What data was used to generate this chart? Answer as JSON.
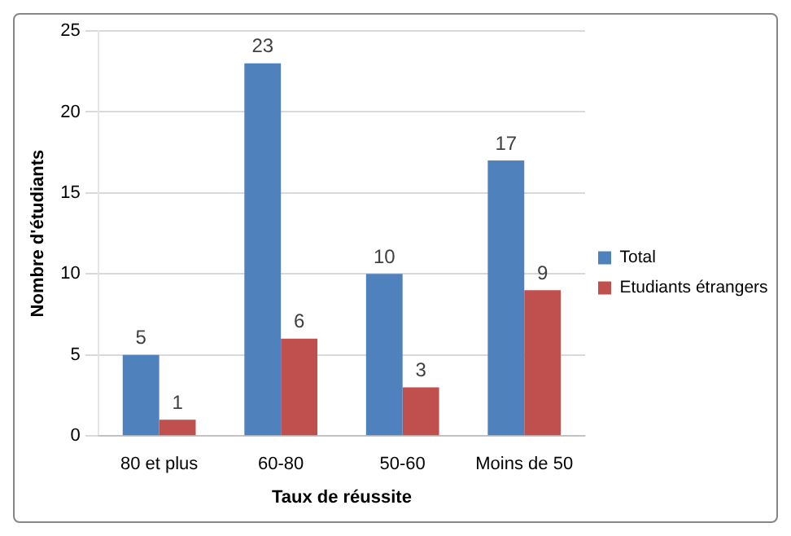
{
  "chart_data": {
    "type": "bar",
    "xlabel": "Taux de réussite",
    "ylabel": "Nombre d'étudiants",
    "categories": [
      "80 et plus",
      "60-80",
      "50-60",
      "Moins de 50"
    ],
    "series": [
      {
        "name": "Total",
        "color": "#4f81bd",
        "values": [
          5,
          23,
          10,
          17
        ]
      },
      {
        "name": "Etudiants étrangers",
        "color": "#c0504d",
        "values": [
          1,
          6,
          3,
          9
        ]
      }
    ],
    "ylim": [
      0,
      25
    ],
    "yticks": [
      0,
      5,
      10,
      15,
      20,
      25
    ],
    "grid": "y",
    "legend": "right",
    "data_labels": true
  }
}
